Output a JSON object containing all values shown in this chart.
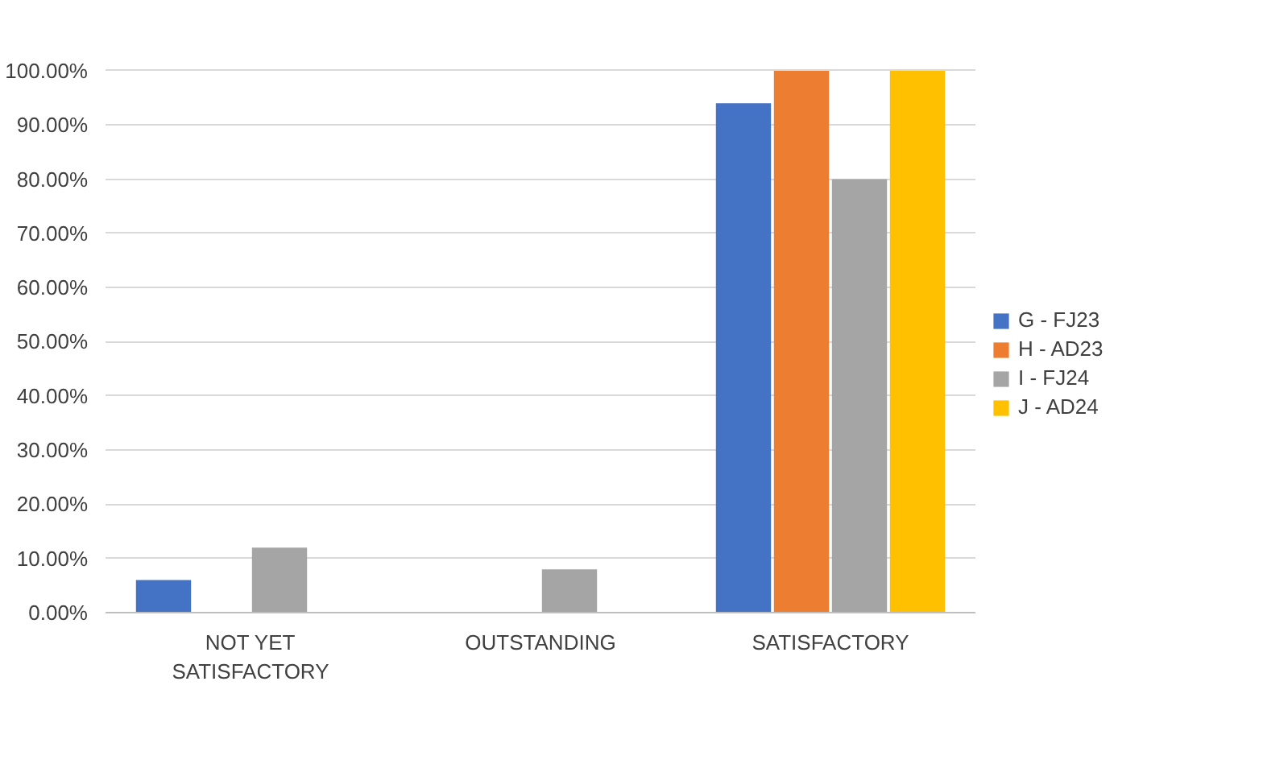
{
  "chart_data": {
    "type": "bar",
    "categories": [
      "NOT YET SATISFACTORY",
      "OUTSTANDING",
      "SATISFACTORY"
    ],
    "series": [
      {
        "name": "G - FJ23",
        "color": "#4472c4",
        "values": [
          6,
          0,
          94
        ]
      },
      {
        "name": "H - AD23",
        "color": "#ed7d31",
        "values": [
          0,
          0,
          100
        ]
      },
      {
        "name": "I - FJ24",
        "color": "#a5a5a5",
        "values": [
          12,
          8,
          80
        ]
      },
      {
        "name": "J - AD24",
        "color": "#ffc000",
        "values": [
          0,
          0,
          100
        ]
      }
    ],
    "ylim": [
      0,
      100
    ],
    "yticks": [
      {
        "value": 0,
        "label": "0.00%"
      },
      {
        "value": 10,
        "label": "10.00%"
      },
      {
        "value": 20,
        "label": "20.00%"
      },
      {
        "value": 30,
        "label": "30.00%"
      },
      {
        "value": 40,
        "label": "40.00%"
      },
      {
        "value": 50,
        "label": "50.00%"
      },
      {
        "value": 60,
        "label": "60.00%"
      },
      {
        "value": 70,
        "label": "70.00%"
      },
      {
        "value": 80,
        "label": "80.00%"
      },
      {
        "value": 90,
        "label": "90.00%"
      },
      {
        "value": 100,
        "label": "100.00%"
      }
    ],
    "grid": "y",
    "legend": "right"
  }
}
